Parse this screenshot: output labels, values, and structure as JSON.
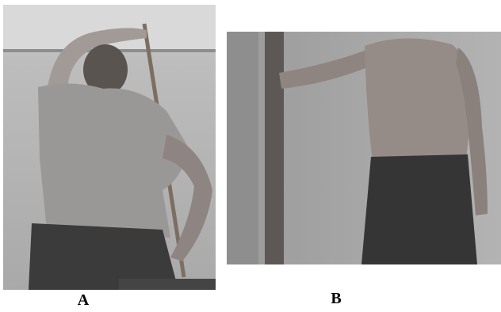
{
  "figure": {
    "panels": [
      {
        "label": "A"
      },
      {
        "label": "B"
      }
    ]
  }
}
